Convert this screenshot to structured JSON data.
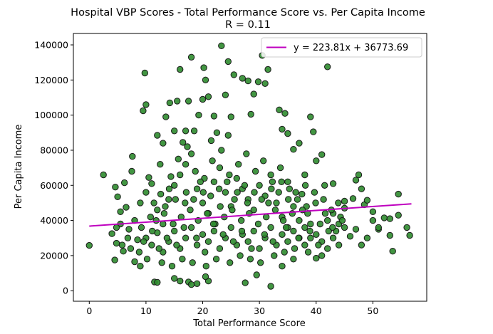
{
  "chart_data": {
    "type": "scatter",
    "title": "Hospital VBP Scores - Total Performance Score vs. Per Capita Income",
    "subtitle": "R = 0.11",
    "xlabel": "Total Performance Score",
    "ylabel": "Per Capita Income",
    "xlim": [
      -2.8,
      59.5
    ],
    "ylim": [
      -6000,
      146500
    ],
    "xticks": [
      0,
      10,
      20,
      30,
      40,
      50
    ],
    "yticks": [
      0,
      20000,
      40000,
      60000,
      80000,
      100000,
      120000,
      140000
    ],
    "grid": false,
    "legend_position": "top-right",
    "point_color": "#2e8b2e",
    "point_edge_color": "#1a1a1a",
    "line_color": "#bf00bf",
    "regression": {
      "label": "y = 223.81x + 36773.69",
      "slope": 223.81,
      "intercept": 36773.69,
      "x_range": [
        0,
        56.8
      ]
    },
    "points": [
      [
        0,
        25800
      ],
      [
        2.5,
        66000
      ],
      [
        4,
        32500
      ],
      [
        4.5,
        17500
      ],
      [
        4.8,
        27000
      ],
      [
        5,
        53500
      ],
      [
        5.5,
        38000
      ],
      [
        4.6,
        59000
      ],
      [
        6,
        22500
      ],
      [
        6.2,
        61500
      ],
      [
        7.5,
        68000
      ],
      [
        7.6,
        76500
      ],
      [
        8.5,
        29000
      ],
      [
        9.5,
        102500
      ],
      [
        9.8,
        124000
      ],
      [
        10,
        106000
      ],
      [
        10.5,
        64500
      ],
      [
        12,
        88500
      ],
      [
        12.5,
        72000
      ],
      [
        13,
        84000
      ],
      [
        13.5,
        99000
      ],
      [
        14.2,
        107000
      ],
      [
        15,
        91000
      ],
      [
        15.5,
        108000
      ],
      [
        16,
        126000
      ],
      [
        16.5,
        84500
      ],
      [
        17,
        91000
      ],
      [
        17.5,
        108000
      ],
      [
        18,
        133000
      ],
      [
        18.5,
        91000
      ],
      [
        19.3,
        100000
      ],
      [
        20,
        109000
      ],
      [
        20.2,
        127000
      ],
      [
        20.5,
        120000
      ],
      [
        21,
        110500
      ],
      [
        21.5,
        85500
      ],
      [
        22,
        99500
      ],
      [
        22.5,
        90000
      ],
      [
        23.3,
        139500
      ],
      [
        24,
        111500
      ],
      [
        24.5,
        130500
      ],
      [
        25,
        99000
      ],
      [
        24.5,
        88500
      ],
      [
        25.5,
        123000
      ],
      [
        27,
        121000
      ],
      [
        28,
        119500
      ],
      [
        28.5,
        100500
      ],
      [
        29,
        112000
      ],
      [
        29.8,
        119000
      ],
      [
        30.5,
        134000
      ],
      [
        31,
        118000
      ],
      [
        31.5,
        126000
      ],
      [
        33.5,
        103000
      ],
      [
        34,
        92000
      ],
      [
        34.5,
        101000
      ],
      [
        35,
        89500
      ],
      [
        36,
        80500
      ],
      [
        37,
        84000
      ],
      [
        38,
        66000
      ],
      [
        39,
        99000
      ],
      [
        39.5,
        90500
      ],
      [
        40,
        74000
      ],
      [
        41,
        77500
      ],
      [
        42,
        127500
      ],
      [
        41.5,
        60000
      ],
      [
        43,
        61000
      ],
      [
        45,
        51000
      ],
      [
        47,
        63000
      ],
      [
        47.5,
        66000
      ],
      [
        48,
        58000
      ],
      [
        48.5,
        49000
      ],
      [
        49,
        51500
      ],
      [
        50,
        45000
      ],
      [
        51,
        35000
      ],
      [
        52,
        41500
      ],
      [
        53,
        41000
      ],
      [
        53,
        31500
      ],
      [
        53.5,
        22500
      ],
      [
        54.5,
        55000
      ],
      [
        54.5,
        43000
      ],
      [
        56,
        36000
      ],
      [
        56.5,
        31500
      ],
      [
        32,
        2500
      ],
      [
        27.5,
        4500
      ],
      [
        17.5,
        5000
      ],
      [
        16,
        5500
      ],
      [
        18,
        3500
      ],
      [
        19,
        4000
      ],
      [
        21,
        5500
      ],
      [
        11.5,
        5000
      ],
      [
        12,
        4800
      ],
      [
        15,
        7000
      ],
      [
        20.5,
        8000
      ],
      [
        29.5,
        9000
      ],
      [
        34,
        14000
      ],
      [
        36,
        18000
      ],
      [
        40,
        18500
      ],
      [
        41,
        20000
      ],
      [
        9,
        14000
      ],
      [
        8,
        16500
      ],
      [
        46,
        31000
      ],
      [
        47,
        35000
      ],
      [
        44,
        38000
      ],
      [
        45,
        47000
      ],
      [
        46.5,
        52500
      ],
      [
        43.5,
        34000
      ],
      [
        42,
        40000
      ],
      [
        38.5,
        44000
      ],
      [
        37.5,
        55000
      ],
      [
        35,
        62000
      ],
      [
        5.5,
        45000
      ],
      [
        6.5,
        47500
      ],
      [
        7,
        35000
      ],
      [
        8,
        40000
      ],
      [
        9,
        50000
      ],
      [
        10,
        56000
      ],
      [
        11,
        61000
      ],
      [
        12,
        46000
      ],
      [
        13,
        38000
      ],
      [
        14,
        52000
      ],
      [
        15,
        60000
      ],
      [
        16,
        66000
      ],
      [
        17,
        72000
      ],
      [
        18,
        78000
      ],
      [
        19,
        58000
      ],
      [
        20,
        50000
      ],
      [
        21,
        44000
      ],
      [
        22,
        62000
      ],
      [
        23,
        70000
      ],
      [
        24,
        56000
      ],
      [
        25,
        48000
      ],
      [
        26,
        64000
      ],
      [
        27,
        58000
      ],
      [
        28,
        52000
      ],
      [
        29,
        46000
      ],
      [
        30,
        60000
      ],
      [
        31,
        54000
      ],
      [
        32,
        66000
      ],
      [
        33,
        50000
      ],
      [
        34,
        42000
      ],
      [
        35,
        36000
      ],
      [
        36,
        48000
      ],
      [
        37,
        30000
      ],
      [
        38,
        26000
      ],
      [
        39,
        38000
      ],
      [
        40,
        32000
      ],
      [
        41,
        28000
      ],
      [
        42,
        24000
      ],
      [
        43,
        30000
      ],
      [
        44,
        26000
      ],
      [
        45,
        36000
      ],
      [
        48,
        26000
      ],
      [
        49,
        30000
      ],
      [
        50,
        40000
      ],
      [
        51,
        36000
      ],
      [
        43,
        44000
      ],
      [
        10,
        30000
      ],
      [
        11,
        26000
      ],
      [
        12,
        33000
      ],
      [
        13,
        22000
      ],
      [
        14,
        28000
      ],
      [
        15,
        34000
      ],
      [
        16,
        24000
      ],
      [
        17,
        30000
      ],
      [
        18,
        36000
      ],
      [
        19,
        26000
      ],
      [
        20,
        32000
      ],
      [
        21,
        28000
      ],
      [
        22,
        34000
      ],
      [
        23,
        24000
      ],
      [
        24,
        30000
      ],
      [
        25,
        36000
      ],
      [
        26,
        26000
      ],
      [
        27,
        32000
      ],
      [
        28,
        28000
      ],
      [
        29,
        34000
      ],
      [
        30,
        24000
      ],
      [
        31,
        30000
      ],
      [
        32,
        36000
      ],
      [
        33,
        26000
      ],
      [
        34,
        32000
      ],
      [
        35,
        28000
      ],
      [
        36,
        34000
      ],
      [
        37,
        40000
      ],
      [
        38,
        36000
      ],
      [
        39,
        30000
      ],
      [
        11.8,
        40000
      ],
      [
        13.2,
        44000
      ],
      [
        14.8,
        38000
      ],
      [
        16.2,
        42000
      ],
      [
        17.8,
        46000
      ],
      [
        19.2,
        40000
      ],
      [
        20.8,
        44000
      ],
      [
        22.2,
        38000
      ],
      [
        23.8,
        42000
      ],
      [
        25.2,
        46000
      ],
      [
        26.8,
        40000
      ],
      [
        28.2,
        44000
      ],
      [
        29.8,
        38000
      ],
      [
        31.2,
        42000
      ],
      [
        32.8,
        46000
      ],
      [
        34.2,
        40000
      ],
      [
        35.8,
        44000
      ],
      [
        9.2,
        36000
      ],
      [
        10.8,
        42000
      ],
      [
        12.6,
        55000
      ],
      [
        14.4,
        65000
      ],
      [
        15.7,
        75000
      ],
      [
        17.3,
        82000
      ],
      [
        18.7,
        68000
      ],
      [
        20.3,
        64000
      ],
      [
        21.7,
        74000
      ],
      [
        23.3,
        80000
      ],
      [
        24.7,
        66000
      ],
      [
        26.3,
        72000
      ],
      [
        27.7,
        78000
      ],
      [
        29.3,
        68000
      ],
      [
        30.7,
        74000
      ],
      [
        32.3,
        62000
      ],
      [
        33.7,
        70000
      ],
      [
        35.3,
        58000
      ],
      [
        36.7,
        52000
      ],
      [
        38.3,
        48000
      ],
      [
        39.7,
        56000
      ],
      [
        41.3,
        52000
      ],
      [
        42.7,
        46000
      ],
      [
        44.3,
        42000
      ],
      [
        7.3,
        24000
      ],
      [
        6.8,
        30000
      ],
      [
        5.8,
        26000
      ],
      [
        4.8,
        36000
      ],
      [
        8.8,
        22000
      ],
      [
        10.2,
        18000
      ],
      [
        12.8,
        16000
      ],
      [
        14.6,
        14000
      ],
      [
        16.4,
        18000
      ],
      [
        18.2,
        16000
      ],
      [
        20.6,
        14000
      ],
      [
        22.4,
        18000
      ],
      [
        24.8,
        16000
      ],
      [
        26.6,
        20000
      ],
      [
        28.4,
        18000
      ],
      [
        30.2,
        16000
      ],
      [
        32.6,
        20000
      ],
      [
        34.4,
        22000
      ],
      [
        36.2,
        24000
      ],
      [
        38.6,
        22000
      ],
      [
        40.4,
        26000
      ],
      [
        42.2,
        34000
      ],
      [
        44.6,
        40000
      ],
      [
        13.4,
        48000
      ],
      [
        15.2,
        52000
      ],
      [
        17.1,
        56000
      ],
      [
        19.6,
        62000
      ],
      [
        21.4,
        54000
      ],
      [
        23.1,
        48000
      ],
      [
        25.6,
        52000
      ],
      [
        27.4,
        60000
      ],
      [
        29.1,
        56000
      ],
      [
        31.6,
        50000
      ],
      [
        33.4,
        56000
      ],
      [
        35.1,
        52000
      ],
      [
        37.6,
        46000
      ],
      [
        11.4,
        50000
      ],
      [
        14.1,
        58000
      ],
      [
        16.9,
        50000
      ],
      [
        18.4,
        52000
      ],
      [
        20.1,
        56000
      ],
      [
        22.9,
        58000
      ],
      [
        24.3,
        62000
      ],
      [
        26.1,
        56000
      ],
      [
        27.9,
        50000
      ],
      [
        30.4,
        52000
      ],
      [
        32.1,
        58000
      ],
      [
        33.9,
        62000
      ],
      [
        36.4,
        56000
      ],
      [
        38.1,
        60000
      ],
      [
        39.9,
        50000
      ],
      [
        41.6,
        44000
      ],
      [
        43.9,
        50000
      ],
      [
        9.6,
        28000
      ],
      [
        11.1,
        34000
      ],
      [
        12.3,
        24000
      ],
      [
        13.7,
        30000
      ],
      [
        15.4,
        26000
      ],
      [
        16.7,
        36000
      ],
      [
        18.9,
        30000
      ],
      [
        20.4,
        22000
      ],
      [
        21.9,
        38000
      ],
      [
        23.6,
        32000
      ],
      [
        25.4,
        28000
      ],
      [
        26.9,
        34000
      ],
      [
        28.6,
        24000
      ],
      [
        30.9,
        32000
      ],
      [
        32.4,
        28000
      ],
      [
        34.7,
        36000
      ],
      [
        36.9,
        30000
      ],
      [
        38.9,
        34000
      ],
      [
        40.7,
        38000
      ],
      [
        42.9,
        36000
      ]
    ]
  }
}
